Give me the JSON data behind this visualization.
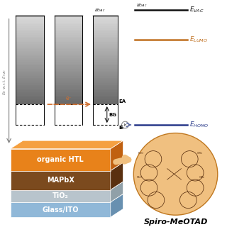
{
  "layers": [
    {
      "name": "organic HTL",
      "color_front": "#E8821A",
      "color_top": "#F5A040",
      "color_side": "#C06010"
    },
    {
      "name": "MAPbX",
      "color_front": "#7B4A1E",
      "color_top": "#9A6030",
      "color_side": "#5A3010"
    },
    {
      "name": "TiO₂",
      "color_front": "#B8C4CC",
      "color_top": "#D0DAE0",
      "color_side": "#90A0A8"
    },
    {
      "name": "Glass/ITO",
      "color_front": "#90B8D8",
      "color_top": "#B0D0E8",
      "color_side": "#6890B0"
    }
  ],
  "evac_color": "#111111",
  "elumo_color": "#C07020",
  "ehomo_color": "#2A3A8A",
  "e_arrow_color": "#D07030",
  "h_arrow_color": "#5060A0",
  "spiro_label": "Spiro-MeOTAD",
  "spiro_bg": "#F0C080",
  "spiro_edge": "#C07820",
  "spiro_line": "#5A3010"
}
